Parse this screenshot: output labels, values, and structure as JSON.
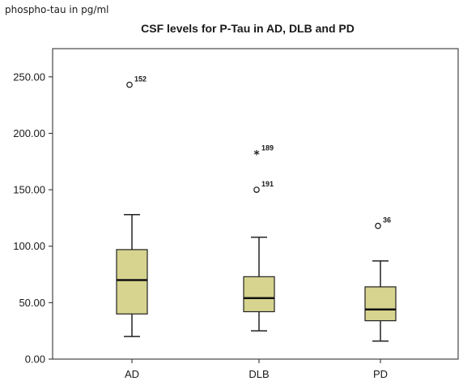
{
  "chart_data": {
    "type": "box",
    "title": "CSF levels for P-Tau in AD, DLB and PD",
    "ylabel": "phospho-tau in pg/ml",
    "xlabel": "",
    "ylim": [
      0,
      275
    ],
    "yticks": [
      0,
      50,
      100,
      150,
      200,
      250
    ],
    "ytick_labels": [
      "0.00",
      "50.00",
      "100.00",
      "150.00",
      "200.00",
      "250.00"
    ],
    "grid": false,
    "box_color": "#d6d48e",
    "categories": [
      "AD",
      "DLB",
      "PD"
    ],
    "boxes": [
      {
        "category": "AD",
        "whisker_low": 20,
        "q1": 40,
        "median": 70,
        "q3": 97,
        "whisker_high": 128,
        "outliers": [
          {
            "value": 243,
            "label": "152",
            "marker": "circle"
          }
        ]
      },
      {
        "category": "DLB",
        "whisker_low": 25,
        "q1": 42,
        "median": 54,
        "q3": 73,
        "whisker_high": 108,
        "outliers": [
          {
            "value": 182,
            "label": "189",
            "marker": "star"
          },
          {
            "value": 150,
            "label": "191",
            "marker": "circle"
          }
        ]
      },
      {
        "category": "PD",
        "whisker_low": 16,
        "q1": 34,
        "median": 44,
        "q3": 64,
        "whisker_high": 87,
        "outliers": [
          {
            "value": 118,
            "label": "36",
            "marker": "circle"
          }
        ]
      }
    ]
  }
}
